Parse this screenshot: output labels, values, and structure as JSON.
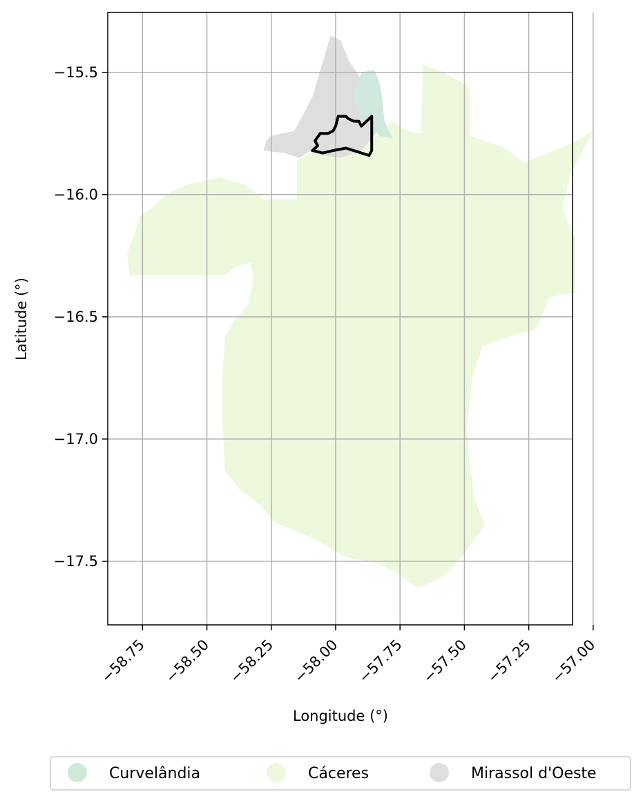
{
  "chart_data": {
    "type": "map",
    "xlabel": "Longitude (°)",
    "ylabel": "Latitude (°)",
    "xlim": [
      -58.885,
      -57.08
    ],
    "ylim": [
      -17.76,
      -15.255
    ],
    "x_ticks": [
      -58.75,
      -58.5,
      -58.25,
      -58.0,
      -57.75,
      -57.5,
      -57.25,
      -57.0
    ],
    "x_tick_labels": [
      "−58.75",
      "−58.50",
      "−58.25",
      "−58.00",
      "−57.75",
      "−57.50",
      "−57.25",
      "−57.00"
    ],
    "y_ticks": [
      -15.5,
      -16.0,
      -16.5,
      -17.0,
      -17.5
    ],
    "y_tick_labels": [
      "−15.5",
      "−16.0",
      "−16.5",
      "−17.0",
      "−17.5"
    ],
    "grid": true,
    "legend_position": "bottom",
    "regions": [
      {
        "name": "Cáceres",
        "color": "#eef8dc",
        "polygon": [
          [
            -58.81,
            -16.24
          ],
          [
            -58.78,
            -16.16
          ],
          [
            -58.76,
            -16.09
          ],
          [
            -58.71,
            -16.05
          ],
          [
            -58.66,
            -16.0
          ],
          [
            -58.58,
            -15.96
          ],
          [
            -58.45,
            -15.93
          ],
          [
            -58.35,
            -15.96
          ],
          [
            -58.28,
            -16.02
          ],
          [
            -58.15,
            -16.02
          ],
          [
            -58.15,
            -15.86
          ],
          [
            -58.05,
            -15.8
          ],
          [
            -57.95,
            -15.77
          ],
          [
            -57.83,
            -15.76
          ],
          [
            -57.78,
            -15.7
          ],
          [
            -57.72,
            -15.74
          ],
          [
            -57.67,
            -15.75
          ],
          [
            -57.66,
            -15.47
          ],
          [
            -57.58,
            -15.5
          ],
          [
            -57.48,
            -15.56
          ],
          [
            -57.48,
            -15.76
          ],
          [
            -57.42,
            -15.78
          ],
          [
            -57.34,
            -15.81
          ],
          [
            -57.27,
            -15.87
          ],
          [
            -57.2,
            -15.84
          ],
          [
            -57.08,
            -15.79
          ],
          [
            -57.0,
            -15.74
          ],
          [
            -57.09,
            -15.92
          ],
          [
            -57.12,
            -16.06
          ],
          [
            -57.07,
            -16.18
          ],
          [
            -57.07,
            -16.4
          ],
          [
            -57.17,
            -16.42
          ],
          [
            -57.22,
            -16.55
          ],
          [
            -57.32,
            -16.58
          ],
          [
            -57.43,
            -16.62
          ],
          [
            -57.47,
            -16.75
          ],
          [
            -57.49,
            -16.95
          ],
          [
            -57.48,
            -17.1
          ],
          [
            -57.46,
            -17.25
          ],
          [
            -57.42,
            -17.35
          ],
          [
            -57.5,
            -17.47
          ],
          [
            -57.58,
            -17.56
          ],
          [
            -57.68,
            -17.61
          ],
          [
            -57.72,
            -17.58
          ],
          [
            -57.76,
            -17.55
          ],
          [
            -57.83,
            -17.51
          ],
          [
            -57.93,
            -17.49
          ],
          [
            -57.97,
            -17.48
          ],
          [
            -58.03,
            -17.44
          ],
          [
            -58.1,
            -17.4
          ],
          [
            -58.17,
            -17.37
          ],
          [
            -58.24,
            -17.34
          ],
          [
            -58.29,
            -17.27
          ],
          [
            -58.37,
            -17.21
          ],
          [
            -58.43,
            -17.13
          ],
          [
            -58.44,
            -16.92
          ],
          [
            -58.44,
            -16.75
          ],
          [
            -58.43,
            -16.58
          ],
          [
            -58.39,
            -16.51
          ],
          [
            -58.34,
            -16.45
          ],
          [
            -58.32,
            -16.35
          ],
          [
            -58.33,
            -16.28
          ],
          [
            -58.38,
            -16.29
          ],
          [
            -58.43,
            -16.33
          ],
          [
            -58.58,
            -16.33
          ],
          [
            -58.8,
            -16.33
          ]
        ]
      },
      {
        "name": "Mirassol d'Oeste",
        "color": "#dedede",
        "polygon": [
          [
            -58.28,
            -15.82
          ],
          [
            -58.27,
            -15.78
          ],
          [
            -58.25,
            -15.76
          ],
          [
            -58.16,
            -15.74
          ],
          [
            -58.09,
            -15.6
          ],
          [
            -58.02,
            -15.35
          ],
          [
            -57.98,
            -15.37
          ],
          [
            -57.95,
            -15.45
          ],
          [
            -57.9,
            -15.53
          ],
          [
            -57.86,
            -15.6
          ],
          [
            -57.82,
            -15.72
          ],
          [
            -57.86,
            -15.77
          ],
          [
            -57.9,
            -15.82
          ],
          [
            -57.98,
            -15.85
          ],
          [
            -58.05,
            -15.84
          ],
          [
            -58.1,
            -15.82
          ],
          [
            -58.14,
            -15.85
          ],
          [
            -58.2,
            -15.83
          ]
        ]
      },
      {
        "name": "Curvelândia",
        "color": "#cfeadc",
        "polygon": [
          [
            -57.93,
            -15.58
          ],
          [
            -57.9,
            -15.5
          ],
          [
            -57.85,
            -15.49
          ],
          [
            -57.83,
            -15.54
          ],
          [
            -57.82,
            -15.6
          ],
          [
            -57.81,
            -15.7
          ],
          [
            -57.78,
            -15.77
          ],
          [
            -57.83,
            -15.76
          ],
          [
            -57.86,
            -15.73
          ],
          [
            -57.9,
            -15.68
          ],
          [
            -57.93,
            -15.62
          ]
        ]
      }
    ],
    "outline": [
      [
        -57.99,
        -15.68
      ],
      [
        -57.96,
        -15.68
      ],
      [
        -57.95,
        -15.69
      ],
      [
        -57.93,
        -15.7
      ],
      [
        -57.91,
        -15.7
      ],
      [
        -57.9,
        -15.72
      ],
      [
        -57.86,
        -15.68
      ],
      [
        -57.86,
        -15.82
      ],
      [
        -57.87,
        -15.84
      ],
      [
        -57.96,
        -15.81
      ],
      [
        -58.01,
        -15.82
      ],
      [
        -58.05,
        -15.83
      ],
      [
        -58.09,
        -15.82
      ],
      [
        -58.07,
        -15.8
      ],
      [
        -58.08,
        -15.78
      ],
      [
        -58.06,
        -15.75
      ],
      [
        -58.03,
        -15.75
      ],
      [
        -58.01,
        -15.74
      ],
      [
        -58.0,
        -15.72
      ]
    ],
    "legend": [
      {
        "label": "Curvelândia",
        "color": "#cfeadc"
      },
      {
        "label": "Cáceres",
        "color": "#eef8dc"
      },
      {
        "label": "Mirassol d'Oeste",
        "color": "#dedede"
      }
    ]
  }
}
